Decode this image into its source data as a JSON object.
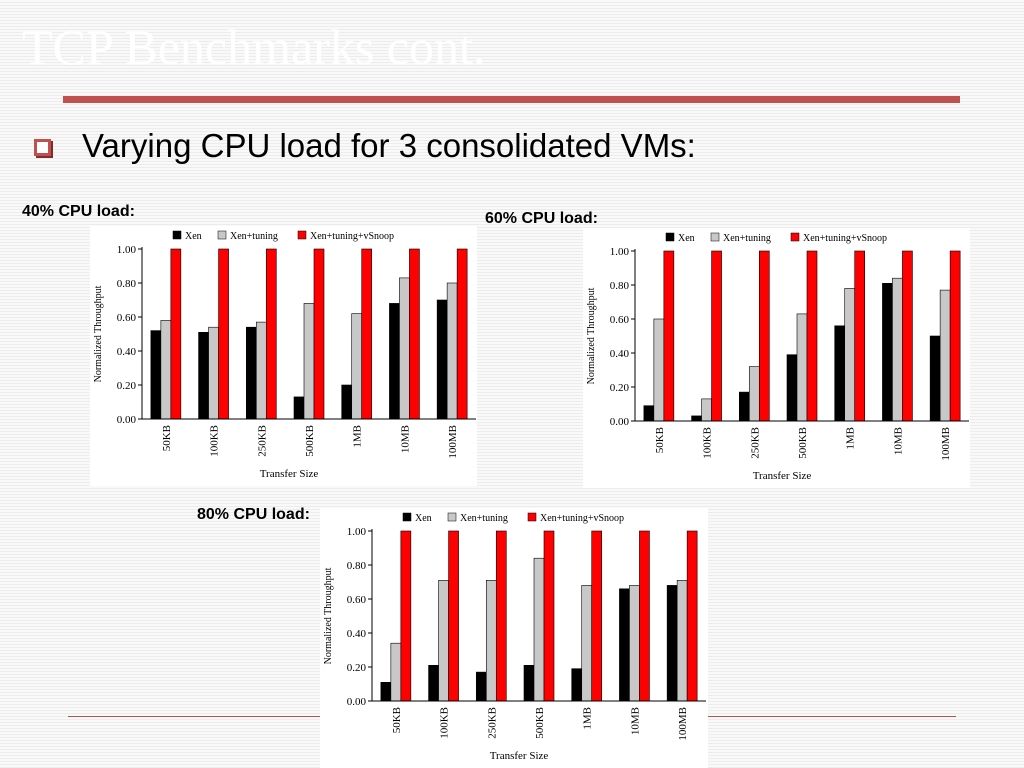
{
  "slide": {
    "title": "TCP Benchmarks cont.",
    "bullet": "Varying CPU load for 3 consolidated VMs:"
  },
  "colors": {
    "accent": "#c0504d",
    "xen": "#000000",
    "tuning": "#c8c8c8",
    "vsnoop": "#ff0000"
  },
  "chart_data": [
    {
      "type": "bar",
      "caption": "40% CPU load:",
      "categories": [
        "50KB",
        "100KB",
        "250KB",
        "500KB",
        "1MB",
        "10MB",
        "100MB"
      ],
      "series": [
        {
          "name": "Xen",
          "values": [
            0.52,
            0.51,
            0.54,
            0.13,
            0.2,
            0.68,
            0.7
          ]
        },
        {
          "name": "Xen+tuning",
          "values": [
            0.58,
            0.54,
            0.57,
            0.68,
            0.62,
            0.83,
            0.8
          ]
        },
        {
          "name": "Xen+tuning+vSnoop",
          "values": [
            1.0,
            1.0,
            1.0,
            1.0,
            1.0,
            1.0,
            1.0
          ]
        }
      ],
      "xlabel": "Transfer Size",
      "ylabel": "Normalized Throughput",
      "ylim": [
        0,
        1
      ],
      "yticks": [
        "0.00",
        "0.20",
        "0.40",
        "0.60",
        "0.80",
        "1.00"
      ],
      "legend": "top"
    },
    {
      "type": "bar",
      "caption": "60% CPU load:",
      "categories": [
        "50KB",
        "100KB",
        "250KB",
        "500KB",
        "1MB",
        "10MB",
        "100MB"
      ],
      "series": [
        {
          "name": "Xen",
          "values": [
            0.09,
            0.03,
            0.17,
            0.39,
            0.56,
            0.81,
            0.5
          ]
        },
        {
          "name": "Xen+tuning",
          "values": [
            0.6,
            0.13,
            0.32,
            0.63,
            0.78,
            0.84,
            0.77
          ]
        },
        {
          "name": "Xen+tuning+vSnoop",
          "values": [
            1.0,
            1.0,
            1.0,
            1.0,
            1.0,
            1.0,
            1.0
          ]
        }
      ],
      "xlabel": "Transfer Size",
      "ylabel": "Normalized Throughput",
      "ylim": [
        0,
        1
      ],
      "yticks": [
        "0.00",
        "0.20",
        "0.40",
        "0.60",
        "0.80",
        "1.00"
      ],
      "legend": "top"
    },
    {
      "type": "bar",
      "caption": "80% CPU load:",
      "categories": [
        "50KB",
        "100KB",
        "250KB",
        "500KB",
        "1MB",
        "10MB",
        "100MB"
      ],
      "series": [
        {
          "name": "Xen",
          "values": [
            0.11,
            0.21,
            0.17,
            0.21,
            0.19,
            0.66,
            0.68
          ]
        },
        {
          "name": "Xen+tuning",
          "values": [
            0.34,
            0.71,
            0.71,
            0.84,
            0.68,
            0.68,
            0.71
          ]
        },
        {
          "name": "Xen+tuning+vSnoop",
          "values": [
            1.0,
            1.0,
            1.0,
            1.0,
            1.0,
            1.0,
            1.0
          ]
        }
      ],
      "xlabel": "Transfer Size",
      "ylabel": "Normalized Throughput",
      "ylim": [
        0,
        1
      ],
      "yticks": [
        "0.00",
        "0.20",
        "0.40",
        "0.60",
        "0.80",
        "1.00"
      ],
      "legend": "top"
    }
  ]
}
